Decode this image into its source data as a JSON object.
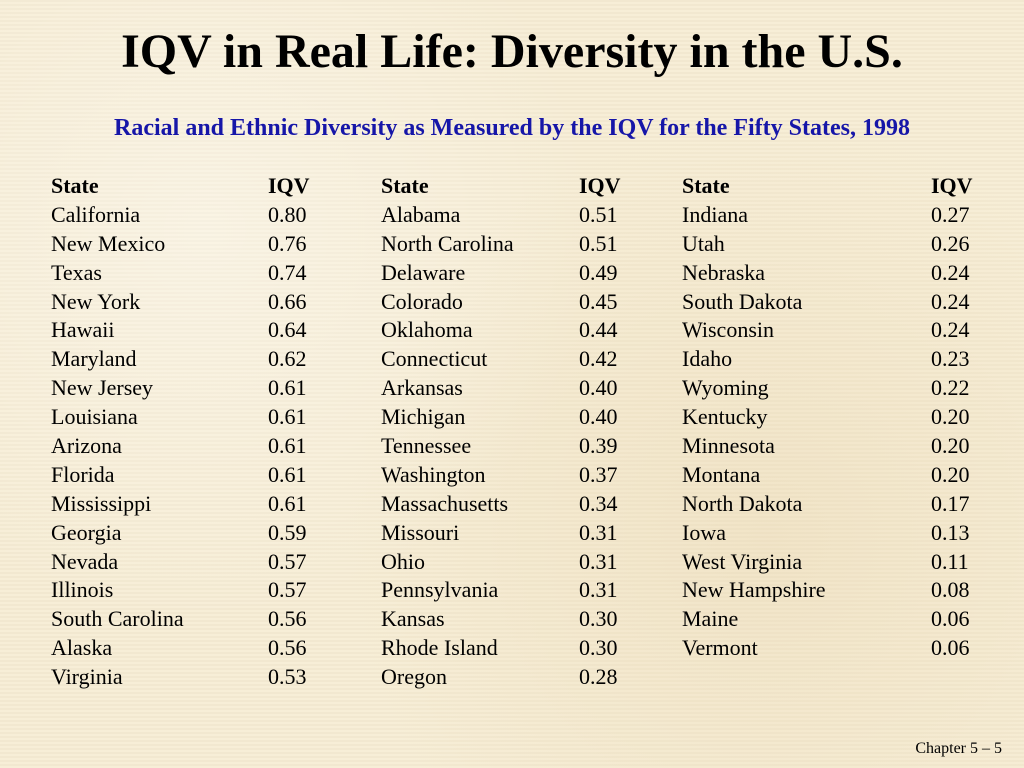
{
  "title": "IQV in Real Life: Diversity in the U.S.",
  "subtitle": "Racial and Ethnic Diversity as Measured by the IQV for the Fifty States, 1998",
  "table": {
    "header": {
      "state": "State",
      "iqv": "IQV"
    },
    "columns": [
      [
        {
          "state": "California",
          "iqv": "0.80"
        },
        {
          "state": "New Mexico",
          "iqv": "0.76"
        },
        {
          "state": "Texas",
          "iqv": "0.74"
        },
        {
          "state": "New York",
          "iqv": "0.66"
        },
        {
          "state": "Hawaii",
          "iqv": "0.64"
        },
        {
          "state": "Maryland",
          "iqv": "0.62"
        },
        {
          "state": "New Jersey",
          "iqv": "0.61"
        },
        {
          "state": "Louisiana",
          "iqv": "0.61"
        },
        {
          "state": "Arizona",
          "iqv": "0.61"
        },
        {
          "state": "Florida",
          "iqv": "0.61"
        },
        {
          "state": "Mississippi",
          "iqv": "0.61"
        },
        {
          "state": "Georgia",
          "iqv": "0.59"
        },
        {
          "state": "Nevada",
          "iqv": "0.57"
        },
        {
          "state": "Illinois",
          "iqv": "0.57"
        },
        {
          "state": "South Carolina",
          "iqv": "0.56"
        },
        {
          "state": "Alaska",
          "iqv": "0.56"
        },
        {
          "state": "Virginia",
          "iqv": "0.53"
        }
      ],
      [
        {
          "state": "Alabama",
          "iqv": "0.51"
        },
        {
          "state": "North Carolina",
          "iqv": "0.51"
        },
        {
          "state": "Delaware",
          "iqv": "0.49"
        },
        {
          "state": "Colorado",
          "iqv": "0.45"
        },
        {
          "state": "Oklahoma",
          "iqv": "0.44"
        },
        {
          "state": "Connecticut",
          "iqv": "0.42"
        },
        {
          "state": "Arkansas",
          "iqv": "0.40"
        },
        {
          "state": "Michigan",
          "iqv": "0.40"
        },
        {
          "state": "Tennessee",
          "iqv": "0.39"
        },
        {
          "state": "Washington",
          "iqv": "0.37"
        },
        {
          "state": "Massachusetts",
          "iqv": "0.34"
        },
        {
          "state": "Missouri",
          "iqv": "0.31"
        },
        {
          "state": "Ohio",
          "iqv": "0.31"
        },
        {
          "state": "Pennsylvania",
          "iqv": "0.31"
        },
        {
          "state": "Kansas",
          "iqv": "0.30"
        },
        {
          "state": "Rhode Island",
          "iqv": "0.30"
        },
        {
          "state": "Oregon",
          "iqv": "0.28"
        }
      ],
      [
        {
          "state": "Indiana",
          "iqv": "0.27"
        },
        {
          "state": "Utah",
          "iqv": "0.26"
        },
        {
          "state": "Nebraska",
          "iqv": "0.24"
        },
        {
          "state": "South Dakota",
          "iqv": "0.24"
        },
        {
          "state": "Wisconsin",
          "iqv": "0.24"
        },
        {
          "state": "Idaho",
          "iqv": "0.23"
        },
        {
          "state": "Wyoming",
          "iqv": "0.22"
        },
        {
          "state": "Kentucky",
          "iqv": "0.20"
        },
        {
          "state": "Minnesota",
          "iqv": "0.20"
        },
        {
          "state": "Montana",
          "iqv": "0.20"
        },
        {
          "state": "North Dakota",
          "iqv": "0.17"
        },
        {
          "state": "Iowa",
          "iqv": "0.13"
        },
        {
          "state": "West Virginia",
          "iqv": "0.11"
        },
        {
          "state": "New Hampshire",
          "iqv": "0.08"
        },
        {
          "state": "Maine",
          "iqv": "0.06"
        },
        {
          "state": "Vermont",
          "iqv": "0.06"
        }
      ]
    ]
  },
  "footer": "Chapter 5 – 5"
}
